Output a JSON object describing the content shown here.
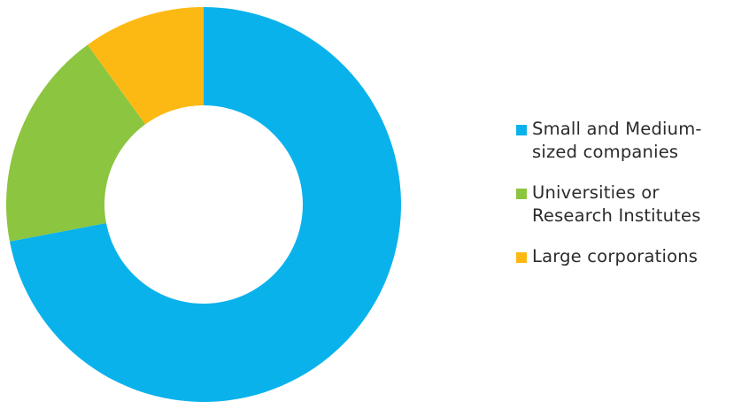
{
  "chart_data": {
    "type": "pie",
    "variant": "donut",
    "title": "",
    "categories": [
      "Small and Medium-\nsized companies",
      "Universities or\nResearch Institutes",
      "Large corporations"
    ],
    "values": [
      72,
      18,
      10
    ],
    "colors": [
      "#0AB2EC",
      "#8CC53F",
      "#FDB913"
    ],
    "legend": {
      "placement": "right",
      "entries": [
        {
          "label": "Small and Medium-\nsized companies",
          "color": "#0AB2EC"
        },
        {
          "label": "Universities or\nResearch Institutes",
          "color": "#8CC53F"
        },
        {
          "label": "Large corporations",
          "color": "#FDB913"
        }
      ]
    }
  }
}
